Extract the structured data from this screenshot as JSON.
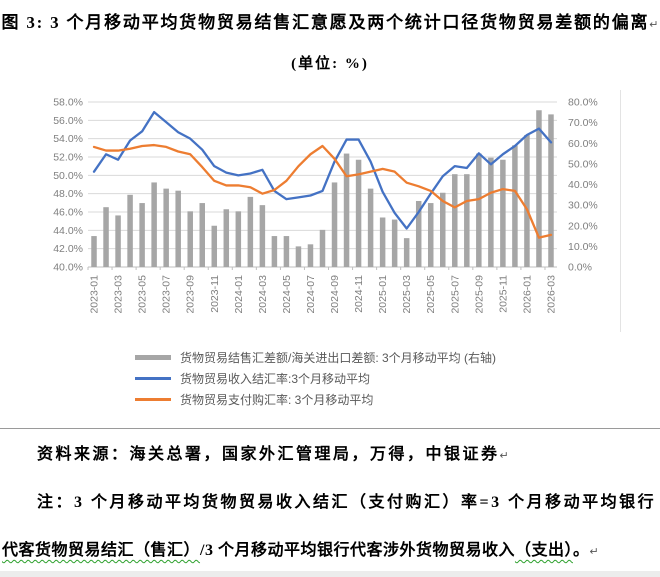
{
  "title": {
    "text": "图 3: 3 个月移动平均货物贸易结售汇意愿及两个统计口径货物贸易差额的偏离",
    "return_mark": "↵"
  },
  "subtitle": "(单位: %)",
  "chart_data": {
    "type": "bar",
    "title": "图 3: 3 个月移动平均货物贸易结售汇意愿及两个统计口径货物贸易差额的偏离",
    "subtitle_units": "(单位: %)",
    "categories": [
      "2023-01",
      "2023-02",
      "2023-03",
      "2023-04",
      "2023-05",
      "2023-06",
      "2023-07",
      "2023-08",
      "2023-09",
      "2023-10",
      "2023-11",
      "2023-12",
      "2024-01",
      "2024-02",
      "2024-03",
      "2024-04",
      "2024-05",
      "2024-06",
      "2024-07",
      "2024-08",
      "2024-09",
      "2024-10",
      "2024-11",
      "2024-12",
      "2025-01",
      "2025-02",
      "2025-03",
      "2025-04",
      "2025-05",
      "2025-06",
      "2025-07",
      "2025-08",
      "2025-09",
      "2025-10",
      "2025-11",
      "2025-12",
      "2026-01",
      "2026-02",
      "2026-03"
    ],
    "x_tick_every": 2,
    "series": [
      {
        "name": "货物贸易结售汇差额/海关进出口差额: 3个月移动平均 (右轴)",
        "type": "bar",
        "axis": "right",
        "color": "#A6A6A6",
        "values": [
          15,
          29,
          25,
          35,
          31,
          41,
          38,
          37,
          27,
          31,
          20,
          28,
          27,
          34,
          30,
          15,
          15,
          10,
          11,
          18,
          41,
          55,
          52,
          38,
          24,
          23,
          14,
          32,
          31,
          36,
          45,
          45,
          55,
          53,
          52,
          59,
          64,
          76,
          74
        ]
      },
      {
        "name": "货物贸易收入结汇率:3个月移动平均",
        "type": "line",
        "axis": "left",
        "color": "#4472C4",
        "values": [
          50.4,
          52.3,
          51.7,
          53.8,
          54.8,
          56.9,
          55.8,
          54.7,
          54.0,
          52.8,
          51.0,
          50.3,
          50.0,
          50.2,
          50.6,
          48.3,
          47.4,
          47.6,
          47.8,
          48.3,
          51.5,
          53.9,
          53.9,
          51.5,
          48.2,
          45.9,
          44.2,
          46.0,
          48.0,
          49.9,
          51.0,
          50.8,
          52.4,
          51.2,
          52.3,
          53.2,
          54.4,
          55.1,
          53.6
        ]
      },
      {
        "name": "货物贸易支付购汇率: 3个月移动平均",
        "type": "line",
        "axis": "left",
        "color": "#ED7D31",
        "values": [
          53.1,
          52.7,
          52.7,
          52.9,
          53.2,
          53.3,
          53.1,
          52.6,
          52.3,
          50.9,
          49.4,
          48.9,
          48.9,
          48.7,
          48.0,
          48.4,
          49.4,
          51.0,
          52.3,
          53.2,
          51.8,
          49.9,
          50.1,
          50.4,
          50.7,
          50.4,
          49.2,
          48.8,
          48.3,
          47.2,
          46.5,
          47.2,
          47.4,
          48.1,
          48.5,
          48.3,
          46.3,
          43.2,
          43.5
        ]
      }
    ],
    "left_axis": {
      "min": 40,
      "max": 58,
      "step": 2,
      "suffix": "%"
    },
    "right_axis": {
      "min": 0,
      "max": 80,
      "step": 10,
      "suffix": "%"
    },
    "grid": true,
    "grid_color": "#d9d9d9",
    "axis_line_color": "#bfbfbf",
    "axis_label_color": "#7f7f7f",
    "legend_position": "bottom"
  },
  "legend": {
    "items": [
      {
        "label": "货物贸易结售汇差额/海关进出口差额: 3个月移动平均 (右轴)",
        "color": "#A6A6A6",
        "swatch": "bar"
      },
      {
        "label": "货物贸易收入结汇率:3个月移动平均",
        "color": "#4472C4",
        "swatch": "line"
      },
      {
        "label": "货物贸易支付购汇率: 3个月移动平均",
        "color": "#ED7D31",
        "swatch": "line"
      }
    ]
  },
  "source_note": {
    "text": "资料来源：海关总署，国家外汇管理局，万得，中银证券",
    "return_mark": "↵"
  },
  "note": {
    "line1": "注：3 个月移动平均货物贸易收入结汇（支付购汇）率=3 个月移动平均银行",
    "line2_parts": [
      {
        "text": "代客货物贸易结汇（售汇）"
      },
      {
        "text": "/3 个月移动平均银行代客涉外货物贸易收入"
      },
      {
        "text": "（支出）"
      },
      {
        "text": "。"
      }
    ],
    "return_mark": "↵"
  }
}
